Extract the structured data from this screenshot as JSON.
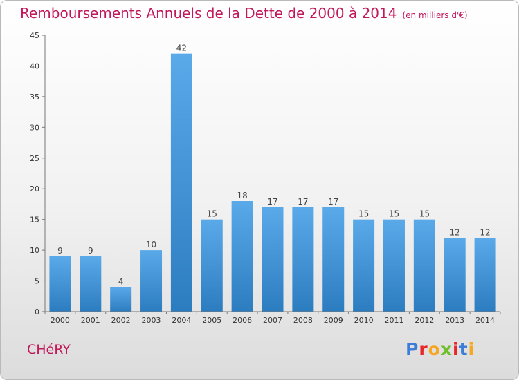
{
  "header": {
    "title": "Remboursements Annuels de la Dette de 2000 à 2014",
    "unit": "(en milliers d'€)"
  },
  "footer": {
    "commune": "CHéRY",
    "logo": [
      "P",
      "r",
      "o",
      "x",
      "i",
      "t",
      "i"
    ],
    "logo_colors": [
      "#3b7dd8",
      "#e8262a",
      "#f5a623",
      "#6fbf2a",
      "#e8262a",
      "#3b7dd8",
      "#f5a623"
    ]
  },
  "colors": {
    "bar_top": "#5aaaea",
    "bar_bottom": "#2c7cc0",
    "title": "#c2185b"
  },
  "chart_data": {
    "type": "bar",
    "categories": [
      "2000",
      "2001",
      "2002",
      "2003",
      "2004",
      "2005",
      "2006",
      "2007",
      "2008",
      "2009",
      "2010",
      "2011",
      "2012",
      "2013",
      "2014"
    ],
    "values": [
      9,
      9,
      4,
      10,
      42,
      15,
      18,
      17,
      17,
      17,
      15,
      15,
      15,
      12,
      12
    ],
    "ylim": [
      0,
      45
    ],
    "yticks": [
      0,
      5,
      10,
      15,
      20,
      25,
      30,
      35,
      40,
      45
    ],
    "grid": false,
    "data_labels": true
  }
}
